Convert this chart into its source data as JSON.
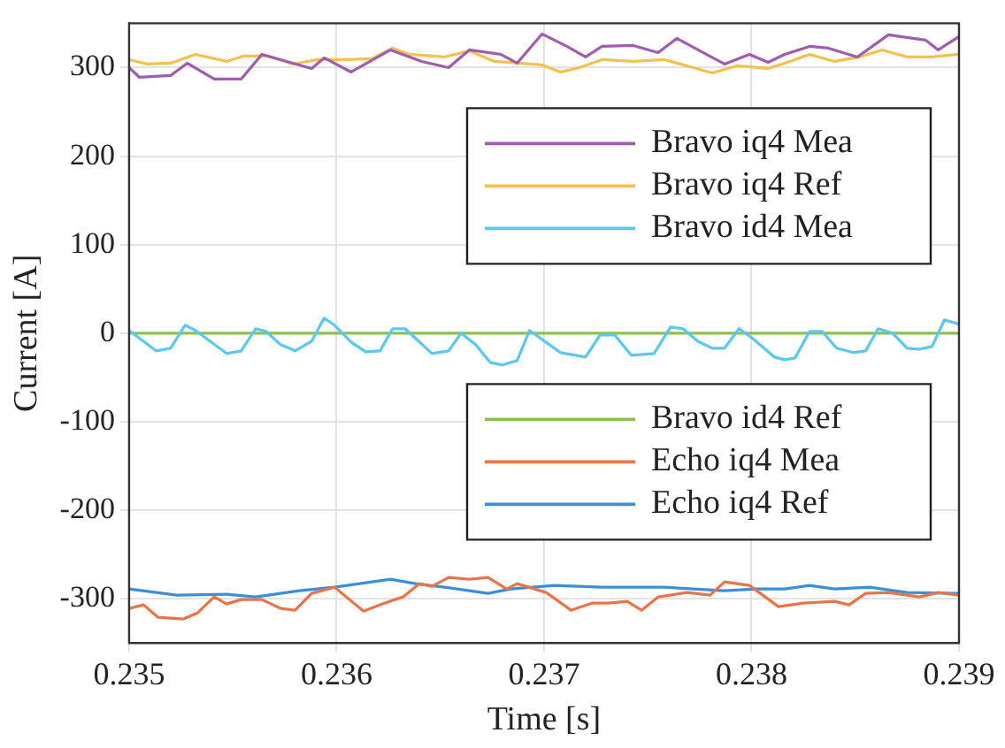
{
  "chart_data": {
    "type": "line",
    "xlabel": "Time [s]",
    "ylabel": "Current [A]",
    "xlim": [
      0.235,
      0.239
    ],
    "xticks": [
      0.235,
      0.236,
      0.237,
      0.238,
      0.239
    ],
    "ylim": [
      -350,
      350
    ],
    "yticks": [
      -300,
      -200,
      -100,
      0,
      100,
      200,
      300
    ],
    "grid": true,
    "legend": "right",
    "series": [
      {
        "name": "Bravo iq4 Mea",
        "color": "#a05db0",
        "x": [
          0.235,
          0.23505,
          0.2352,
          0.23528,
          0.23541,
          0.23554,
          0.23564,
          0.23579,
          0.23588,
          0.23594,
          0.23607,
          0.23626,
          0.23641,
          0.23654,
          0.23664,
          0.23679,
          0.23687,
          0.23699,
          0.23711,
          0.2372,
          0.23728,
          0.23743,
          0.23755,
          0.23764,
          0.23775,
          0.23787,
          0.23799,
          0.23808,
          0.23816,
          0.23828,
          0.23837,
          0.23851,
          0.23866,
          0.23884,
          0.2389,
          0.239
        ],
        "values": [
          300,
          289,
          291,
          305,
          287,
          287,
          315,
          305,
          299,
          311,
          295,
          320,
          307,
          300,
          320,
          315,
          305,
          338,
          324,
          312,
          324,
          325,
          317,
          333,
          319,
          304,
          315,
          306,
          315,
          324,
          322,
          312,
          337,
          331,
          320,
          335
        ]
      },
      {
        "name": "Bravo iq4 Ref",
        "color": "#f2c14e",
        "x": [
          0.235,
          0.23509,
          0.2352,
          0.23532,
          0.23547,
          0.23555,
          0.23567,
          0.23579,
          0.23591,
          0.23605,
          0.23617,
          0.23627,
          0.23635,
          0.23652,
          0.23664,
          0.23676,
          0.23699,
          0.23708,
          0.23717,
          0.23728,
          0.23743,
          0.23758,
          0.23772,
          0.23781,
          0.23793,
          0.23808,
          0.23816,
          0.23828,
          0.2384,
          0.23852,
          0.23863,
          0.23875,
          0.23887,
          0.239
        ],
        "values": [
          309,
          304,
          305,
          315,
          307,
          313,
          313,
          304,
          309,
          309,
          310,
          322,
          315,
          312,
          319,
          307,
          303,
          295,
          300,
          309,
          307,
          309,
          300,
          294,
          302,
          299,
          305,
          315,
          307,
          312,
          320,
          312,
          312,
          315
        ]
      },
      {
        "name": "Bravo id4 Mea",
        "color": "#5ac8f0",
        "x": [
          0.235,
          0.23513,
          0.2352,
          0.23527,
          0.23532,
          0.23547,
          0.23554,
          0.23561,
          0.23566,
          0.23573,
          0.2358,
          0.23588,
          0.23594,
          0.23599,
          0.23607,
          0.23614,
          0.23621,
          0.23627,
          0.23633,
          0.23646,
          0.23654,
          0.2366,
          0.23667,
          0.23674,
          0.2368,
          0.23687,
          0.23693,
          0.23708,
          0.2372,
          0.23727,
          0.23734,
          0.23742,
          0.23753,
          0.23761,
          0.23767,
          0.23774,
          0.23781,
          0.23787,
          0.23794,
          0.238,
          0.23811,
          0.23816,
          0.23821,
          0.23828,
          0.23834,
          0.23841,
          0.23849,
          0.23855,
          0.23861,
          0.23868,
          0.23875,
          0.23881,
          0.23887,
          0.23893,
          0.239
        ],
        "values": [
          3,
          -20,
          -17,
          9,
          3,
          -23,
          -20,
          5,
          2,
          -13,
          -20,
          -9,
          17,
          9,
          -10,
          -21,
          -20,
          5,
          5,
          -23,
          -20,
          0,
          -13,
          -33,
          -36,
          -31,
          3,
          -22,
          -27,
          -2,
          -2,
          -25,
          -23,
          7,
          5,
          -9,
          -17,
          -17,
          5,
          -5,
          -27,
          -30,
          -28,
          2,
          2,
          -17,
          -22,
          -20,
          5,
          0,
          -17,
          -18,
          -15,
          15,
          10
        ]
      },
      {
        "name": "Bravo id4 Ref",
        "color": "#8cc152",
        "x": [
          0.235,
          0.239
        ],
        "values": [
          0,
          0
        ]
      },
      {
        "name": "Echo iq4 Mea",
        "color": "#e8754a",
        "x": [
          0.235,
          0.23507,
          0.23514,
          0.23526,
          0.23533,
          0.23541,
          0.23547,
          0.23554,
          0.23564,
          0.23573,
          0.2358,
          0.23588,
          0.23599,
          0.23613,
          0.23623,
          0.23632,
          0.2364,
          0.23646,
          0.23654,
          0.23664,
          0.23673,
          0.23682,
          0.23687,
          0.23701,
          0.23713,
          0.23723,
          0.23731,
          0.2374,
          0.23747,
          0.23755,
          0.23769,
          0.2378,
          0.23787,
          0.23799,
          0.23813,
          0.23825,
          0.2384,
          0.23847,
          0.23855,
          0.23866,
          0.23881,
          0.2389,
          0.239
        ],
        "values": [
          -311,
          -307,
          -321,
          -323,
          -316,
          -298,
          -306,
          -301,
          -301,
          -311,
          -313,
          -294,
          -287,
          -314,
          -305,
          -298,
          -283,
          -286,
          -276,
          -278,
          -276,
          -289,
          -283,
          -293,
          -313,
          -305,
          -305,
          -303,
          -313,
          -298,
          -293,
          -296,
          -281,
          -285,
          -309,
          -305,
          -303,
          -307,
          -294,
          -293,
          -298,
          -293,
          -296
        ]
      },
      {
        "name": "Echo iq4 Ref",
        "color": "#3a8fd6",
        "x": [
          0.235,
          0.23523,
          0.23547,
          0.23561,
          0.23582,
          0.23599,
          0.23611,
          0.23626,
          0.23638,
          0.23652,
          0.23673,
          0.23684,
          0.23705,
          0.23728,
          0.23758,
          0.23787,
          0.23802,
          0.23816,
          0.23828,
          0.2384,
          0.23857,
          0.23875,
          0.239
        ],
        "values": [
          -289,
          -296,
          -295,
          -298,
          -291,
          -287,
          -283,
          -278,
          -283,
          -287,
          -294,
          -289,
          -285,
          -287,
          -287,
          -291,
          -289,
          -289,
          -285,
          -289,
          -287,
          -293,
          -294
        ]
      }
    ]
  }
}
